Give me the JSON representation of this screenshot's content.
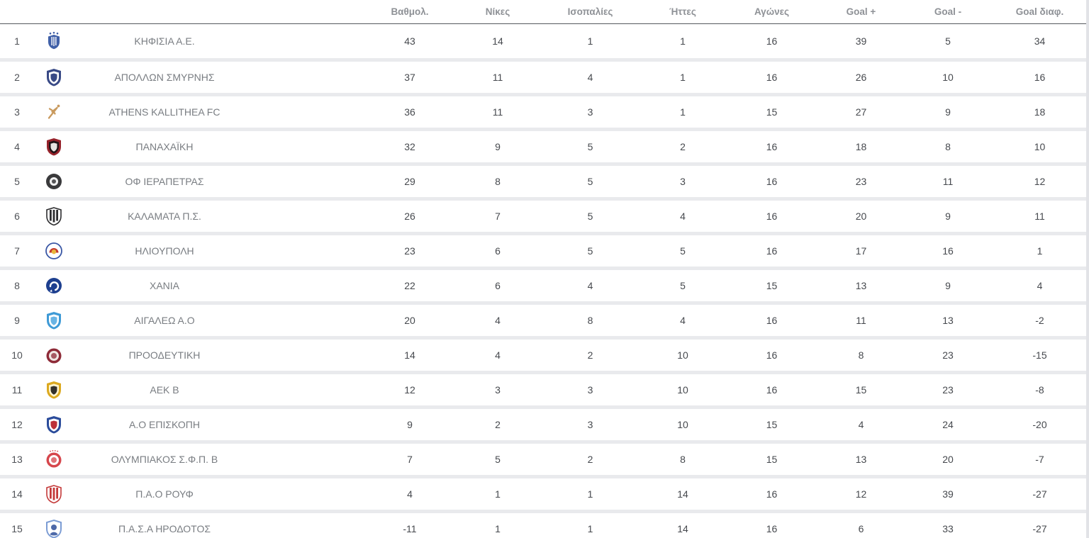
{
  "colors": {
    "header_text": "#8e9196",
    "header_border": "#55585d",
    "row_separator": "#e9eaed",
    "number_text": "#46494e",
    "team_name_text": "#797d82",
    "scrollbar": "#e2e3e7"
  },
  "table": {
    "headers": {
      "points": "Βαθμολ.",
      "wins": "Νίκες",
      "draws": "Ισοπαλίες",
      "losses": "Ήττες",
      "games": "Αγώνες",
      "goals_for": "Goal +",
      "goals_against": "Goal -",
      "goal_diff": "Goal διαφ."
    },
    "teams": [
      {
        "rank": 1,
        "name": "ΚΗΦΙΣΙΑ Α.Ε.",
        "points": 43,
        "wins": 14,
        "draws": 1,
        "losses": 1,
        "games": 16,
        "goals_for": 39,
        "goals_against": 5,
        "goal_diff": 34,
        "logo": {
          "style": "crest",
          "primary": "#4060a8",
          "secondary": "#ffffff",
          "accent": "#4060a8"
        }
      },
      {
        "rank": 2,
        "name": "ΑΠΟΛΛΩΝ ΣΜΥΡΝΗΣ",
        "points": 37,
        "wins": 11,
        "draws": 4,
        "losses": 1,
        "games": 16,
        "goals_for": 26,
        "goals_against": 10,
        "goal_diff": 16,
        "logo": {
          "style": "shield",
          "primary": "#394a86",
          "secondary": "#ffffff",
          "accent": "#394a86"
        }
      },
      {
        "rank": 3,
        "name": "ATHENS KALLITHEA FC",
        "points": 36,
        "wins": 11,
        "draws": 3,
        "losses": 1,
        "games": 15,
        "goals_for": 27,
        "goals_against": 9,
        "goal_diff": 18,
        "logo": {
          "style": "archer",
          "primary": "#c99a5e",
          "secondary": "#ffffff",
          "accent": "#c99a5e"
        }
      },
      {
        "rank": 4,
        "name": "ΠΑΝΑΧΑΪΚΗ",
        "points": 32,
        "wins": 9,
        "draws": 5,
        "losses": 2,
        "games": 16,
        "goals_for": 18,
        "goals_against": 8,
        "goal_diff": 10,
        "logo": {
          "style": "shield",
          "primary": "#96222b",
          "secondary": "#221418",
          "accent": "#e8e4e2"
        }
      },
      {
        "rank": 5,
        "name": "ΟΦ ΙΕΡΑΠΕΤΡΑΣ",
        "points": 29,
        "wins": 8,
        "draws": 5,
        "losses": 3,
        "games": 16,
        "goals_for": 23,
        "goals_against": 11,
        "goal_diff": 12,
        "logo": {
          "style": "circle",
          "primary": "#3a3a3c",
          "secondary": "#f2f2f2",
          "accent": "#3a3a3c"
        }
      },
      {
        "rank": 6,
        "name": "ΚΑΛΑΜΑΤΑ Π.Σ.",
        "points": 26,
        "wins": 7,
        "draws": 5,
        "losses": 4,
        "games": 16,
        "goals_for": 20,
        "goals_against": 9,
        "goal_diff": 11,
        "logo": {
          "style": "shield-striped",
          "primary": "#2e2e30",
          "secondary": "#ffffff",
          "accent": "#2e2e30"
        }
      },
      {
        "rank": 7,
        "name": "ΗΛΙΟΥΠΟΛΗ",
        "points": 23,
        "wins": 6,
        "draws": 5,
        "losses": 5,
        "games": 16,
        "goals_for": 17,
        "goals_against": 16,
        "goal_diff": 1,
        "logo": {
          "style": "sun",
          "primary": "#3a57a5",
          "secondary": "#c4392e",
          "accent": "#e9b63b"
        }
      },
      {
        "rank": 8,
        "name": "ΧΑΝΙΑ",
        "points": 22,
        "wins": 6,
        "draws": 4,
        "losses": 5,
        "games": 15,
        "goals_for": 13,
        "goals_against": 9,
        "goal_diff": 4,
        "logo": {
          "style": "swirl",
          "primary": "#1d3f8f",
          "secondary": "#ffffff",
          "accent": "#1d3f8f"
        }
      },
      {
        "rank": 9,
        "name": "ΑΙΓΑΛΕΩ Α.Ο",
        "points": 20,
        "wins": 4,
        "draws": 8,
        "losses": 4,
        "games": 16,
        "goals_for": 11,
        "goals_against": 13,
        "goal_diff": -2,
        "logo": {
          "style": "shield",
          "primary": "#3e9ad6",
          "secondary": "#ffffff",
          "accent": "#69b4e4"
        }
      },
      {
        "rank": 10,
        "name": "ΠΡΟΟΔΕΥΤΙΚΗ",
        "points": 14,
        "wins": 4,
        "draws": 2,
        "losses": 10,
        "games": 16,
        "goals_for": 8,
        "goals_against": 23,
        "goal_diff": -15,
        "logo": {
          "style": "ring",
          "primary": "#8e2b38",
          "secondary": "#efe7e3",
          "accent": "#8e2b38"
        }
      },
      {
        "rank": 11,
        "name": "ΑΕΚ Β",
        "points": 12,
        "wins": 3,
        "draws": 3,
        "losses": 10,
        "games": 16,
        "goals_for": 15,
        "goals_against": 23,
        "goal_diff": -8,
        "logo": {
          "style": "shield",
          "primary": "#dca91f",
          "secondary": "#fff4cf",
          "accent": "#33302a"
        }
      },
      {
        "rank": 12,
        "name": "Α.Ο ΕΠΙΣΚΟΠΗ",
        "points": 9,
        "wins": 2,
        "draws": 3,
        "losses": 10,
        "games": 15,
        "goals_for": 4,
        "goals_against": 24,
        "goal_diff": -20,
        "logo": {
          "style": "shield",
          "primary": "#2b4c9b",
          "secondary": "#ffffff",
          "accent": "#bc3038"
        }
      },
      {
        "rank": 13,
        "name": "ΟΛΥΜΠΙΑΚΟΣ Σ.Φ.Π. Β",
        "points": 7,
        "wins": 5,
        "draws": 2,
        "losses": 8,
        "games": 15,
        "goals_for": 13,
        "goals_against": 20,
        "goal_diff": -7,
        "logo": {
          "style": "ring",
          "stars": true,
          "primary": "#d6464c",
          "secondary": "#ffffff",
          "accent": "#d6464c"
        }
      },
      {
        "rank": 14,
        "name": "Π.Α.Ο ΡΟΥΦ",
        "points": 4,
        "wins": 1,
        "draws": 1,
        "losses": 14,
        "games": 16,
        "goals_for": 12,
        "goals_against": 39,
        "goal_diff": -27,
        "logo": {
          "style": "shield-striped",
          "primary": "#c43a3a",
          "secondary": "#ffffff",
          "accent": "#c43a3a"
        }
      },
      {
        "rank": 15,
        "name": "Π.Α.Σ.Α ΗΡΟΔΟΤΟΣ",
        "points": -11,
        "wins": 1,
        "draws": 1,
        "losses": 14,
        "games": 16,
        "goals_for": 6,
        "goals_against": 33,
        "goal_diff": -27,
        "logo": {
          "style": "shield-outline",
          "primary": "#7b9cd4",
          "secondary": "#ffffff",
          "accent": "#4d69a8"
        }
      }
    ]
  }
}
